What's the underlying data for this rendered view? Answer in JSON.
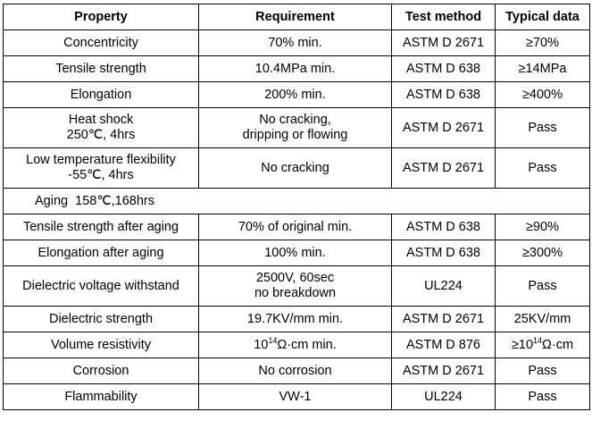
{
  "table": {
    "headers": [
      "Property",
      "Requirement",
      "Test method",
      "Typical data"
    ],
    "rows": [
      {
        "property": "Concentricity",
        "requirement": "70% min.",
        "method": "ASTM D 2671",
        "typical": "≥70%"
      },
      {
        "property": "Tensile strength",
        "requirement": "10.4MPa min.",
        "method": "ASTM D 638",
        "typical": "≥14MPa"
      },
      {
        "property": "Elongation",
        "requirement": "200% min.",
        "method": "ASTM D 638",
        "typical": "≥400%"
      },
      {
        "property_lines": [
          "Heat shock",
          "250℃, 4hrs"
        ],
        "requirement_lines": [
          "No cracking,",
          "dripping or flowing"
        ],
        "method": "ASTM D 2671",
        "typical": "Pass"
      },
      {
        "property_lines": [
          "Low temperature flexibility",
          "-55℃, 4hrs"
        ],
        "requirement": "No cracking",
        "method": "ASTM D 2671",
        "typical": "Pass"
      },
      {
        "section": "Aging  158℃,168hrs"
      },
      {
        "property": "Tensile strength after aging",
        "requirement": "70% of original min.",
        "method": "ASTM D 638",
        "typical": "≥90%"
      },
      {
        "property": "Elongation after aging",
        "requirement": "100% min.",
        "method": "ASTM D 638",
        "typical": "≥300%"
      },
      {
        "property": "Dielectric voltage withstand",
        "requirement_lines": [
          "2500V, 60sec",
          "no breakdown"
        ],
        "method": "UL224",
        "typical": "Pass"
      },
      {
        "property": "Dielectric strength",
        "requirement": "19.7KV/mm min.",
        "method": "ASTM D 2671",
        "typical": "25KV/mm"
      },
      {
        "property": "Volume resistivity",
        "requirement_parts": [
          "10",
          "14",
          "Ω·cm min."
        ],
        "method": "ASTM D 876",
        "typical_parts": [
          "≥10",
          "14",
          "Ω·cm"
        ]
      },
      {
        "property": "Corrosion",
        "requirement": "No corrosion",
        "method": "ASTM D 2671",
        "typical": "Pass"
      },
      {
        "property": "Flammability",
        "requirement": "VW-1",
        "method": "UL224",
        "typical": "Pass"
      }
    ]
  }
}
